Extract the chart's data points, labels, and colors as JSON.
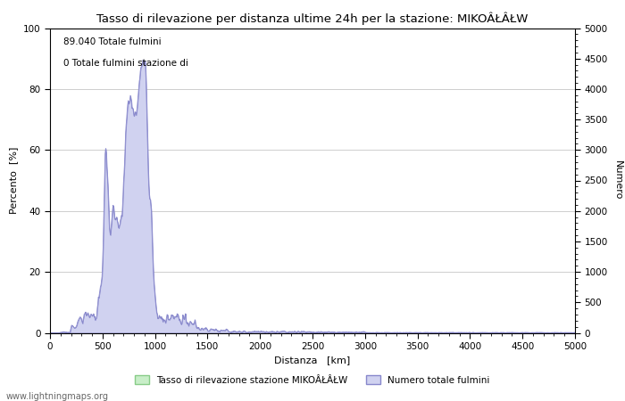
{
  "title": "Tasso di rilevazione per distanza ultime 24h per la stazione: MIKOÂŁÂŁW",
  "xlabel": "Distanza   [km]",
  "ylabel_left": "Percento  [%]",
  "ylabel_right": "Numero",
  "annotation_line1": "89.040 Totale fulmini",
  "annotation_line2": "0 Totale fulmini stazione di",
  "legend_label1": "Tasso di rilevazione stazione MIKOÂŁÂŁW",
  "legend_label2": "Numero totale fulmini",
  "footer": "www.lightningmaps.org",
  "xlim": [
    0,
    5000
  ],
  "ylim_left": [
    0,
    100
  ],
  "ylim_right": [
    0,
    5000
  ],
  "xticks": [
    0,
    500,
    1000,
    1500,
    2000,
    2500,
    3000,
    3500,
    4000,
    4500,
    5000
  ],
  "yticks_left": [
    0,
    20,
    40,
    60,
    80,
    100
  ],
  "yticks_right": [
    0,
    500,
    1000,
    1500,
    2000,
    2500,
    3000,
    3500,
    4000,
    4500,
    5000
  ],
  "fill_blue_color": "#d0d2f0",
  "fill_blue_edge": "#8888cc",
  "fill_green_color": "#c8eec8",
  "fill_green_edge": "#88cc88",
  "bg_color": "#ffffff",
  "grid_color": "#bbbbbb"
}
